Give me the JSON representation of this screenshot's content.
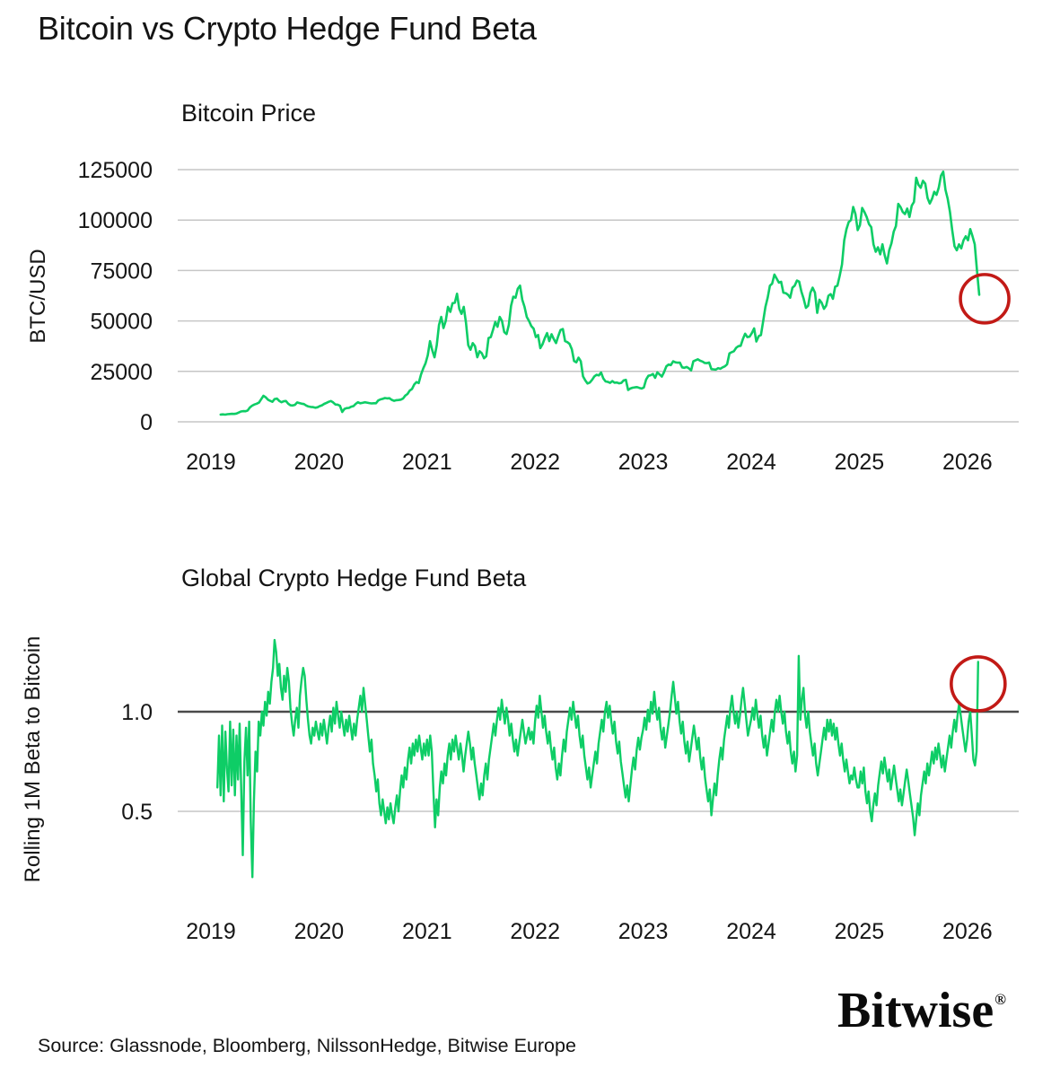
{
  "page": {
    "title": "Bitcoin vs Crypto Hedge Fund Beta",
    "source": "Source: Glassnode, Bloomberg, NilssonHedge, Bitwise Europe",
    "brand": "Bitwise",
    "brand_reg": "®"
  },
  "colors": {
    "series_green": "#0ecd66",
    "grid_gray": "#c6c6c6",
    "reference_dark": "#4a4a4a",
    "annotation_red": "#c21a16",
    "text_dark": "#161616"
  },
  "chart_data": [
    {
      "type": "line",
      "title": "Bitcoin Price",
      "ylabel": "BTC/USD",
      "x_tick_labels": [
        "2019",
        "2020",
        "2021",
        "2022",
        "2023",
        "2024",
        "2025",
        "2026"
      ],
      "y_tick_labels": [
        "125000",
        "100000",
        "75000",
        "50000",
        "25000",
        "0"
      ],
      "y_tick_values": [
        125000,
        100000,
        75000,
        50000,
        25000,
        0
      ],
      "ylim": [
        0,
        125000
      ],
      "grid": true,
      "legend": "none",
      "x_start": 2019.09,
      "x_end": 2026.11,
      "annotation_circle": {
        "t": 2026.16,
        "value": 61000,
        "radius_px": 27
      },
      "values": [
        3600,
        3680,
        3560,
        3800,
        3850,
        3950,
        3900,
        4100,
        4600,
        5100,
        5300,
        5250,
        5600,
        7100,
        8000,
        8600,
        9000,
        9500,
        11200,
        12900,
        12200,
        11000,
        10400,
        9900,
        11300,
        11500,
        10400,
        9700,
        10200,
        10300,
        9000,
        8200,
        8100,
        8400,
        9600,
        9300,
        9000,
        8800,
        8100,
        7600,
        7400,
        7300,
        7000,
        7200,
        7800,
        8200,
        8900,
        9400,
        9900,
        10300,
        9600,
        8600,
        8500,
        7900,
        4900,
        6400,
        6800,
        6900,
        7500,
        7800,
        8900,
        9700,
        9200,
        9400,
        9700,
        9500,
        9300,
        9100,
        9200,
        9200,
        10600,
        11100,
        11400,
        11800,
        11600,
        11700,
        10900,
        10400,
        10700,
        10800,
        11000,
        11500,
        13000,
        13800,
        15500,
        16300,
        18500,
        19700,
        19200,
        23500,
        26500,
        29000,
        33000,
        40000,
        35500,
        32000,
        38000,
        48000,
        52000,
        46500,
        50000,
        57000,
        54500,
        58800,
        59000,
        63500,
        56000,
        53500,
        57000,
        49000,
        38000,
        35700,
        39000,
        37500,
        32000,
        35000,
        34000,
        31500,
        32500,
        41500,
        42000,
        45600,
        49500,
        47100,
        52000,
        50000,
        44500,
        43500,
        48000,
        57500,
        62000,
        61500,
        66000,
        67500,
        60500,
        57000,
        52000,
        50000,
        47500,
        46200,
        42000,
        43000,
        36500,
        38500,
        41500,
        44000,
        40000,
        43400,
        41000,
        39000,
        42500,
        45500,
        46000,
        40000,
        39500,
        38600,
        36000,
        30100,
        29500,
        31800,
        30000,
        22500,
        20500,
        19000,
        19500,
        20800,
        22500,
        23300,
        23000,
        24400,
        21500,
        20000,
        19800,
        19300,
        20200,
        19400,
        19500,
        19100,
        19300,
        20500,
        20800,
        15800,
        16500,
        16900,
        17100,
        17200,
        16800,
        16500,
        17000,
        21000,
        22800,
        23100,
        23700,
        21800,
        24500,
        23500,
        22400,
        24700,
        27500,
        28400,
        28100,
        30000,
        29500,
        29300,
        29300,
        27000,
        26800,
        27200,
        26500,
        25500,
        30000,
        30500,
        31000,
        30300,
        29900,
        29200,
        29100,
        29400,
        26100,
        26000,
        25900,
        26600,
        26300,
        27000,
        27500,
        28500,
        33900,
        34500,
        35000,
        36700,
        37500,
        37700,
        41000,
        43700,
        42000,
        42200,
        44000,
        46300,
        39800,
        42500,
        43000,
        49900,
        57000,
        61500,
        67500,
        68500,
        73000,
        71000,
        69000,
        69400,
        64000,
        63800,
        63000,
        61500,
        66500,
        67500,
        70000,
        69500,
        64500,
        61000,
        56500,
        57500,
        64000,
        66500,
        64000,
        54000,
        60500,
        59000,
        56000,
        57600,
        62500,
        63300,
        61000,
        67000,
        67500,
        72300,
        78000,
        90000,
        95500,
        99000,
        100000,
        106500,
        103000,
        95000,
        97500,
        106000,
        104000,
        101500,
        98000,
        96500,
        88000,
        84300,
        86500,
        83000,
        88000,
        82500,
        78500,
        85000,
        88500,
        94200,
        97000,
        108000,
        106500,
        104000,
        103000,
        105700,
        101500,
        107100,
        109000,
        121000,
        117500,
        116000,
        119500,
        118000,
        111000,
        108200,
        110500,
        114000,
        112500,
        116000,
        122000,
        124000,
        115000,
        110500,
        104000,
        95000,
        87000,
        85000,
        88000,
        86000,
        90000,
        92000,
        90000,
        95500,
        92000,
        88000,
        75000,
        63000
      ]
    },
    {
      "type": "line",
      "title": "Global Crypto Hedge Fund Beta",
      "ylabel": "Rolling 1M Beta to Bitcoin",
      "x_tick_labels": [
        "2019",
        "2020",
        "2021",
        "2022",
        "2023",
        "2024",
        "2025",
        "2026"
      ],
      "y_tick_labels": [
        "1.0",
        "0.5"
      ],
      "y_tick_values": [
        1.0,
        0.5
      ],
      "reference_line": 1.0,
      "ylim": [
        0.13,
        1.45
      ],
      "grid": true,
      "legend": "none",
      "x_start": 2019.06,
      "x_end": 2026.1,
      "annotation_circle": {
        "t": 2026.1,
        "value": 1.14,
        "radius_px": 30
      },
      "values": [
        0.62,
        0.88,
        0.58,
        0.93,
        0.55,
        0.9,
        0.72,
        0.6,
        0.95,
        0.63,
        0.91,
        0.58,
        0.88,
        0.66,
        0.94,
        0.6,
        0.28,
        0.75,
        0.92,
        0.68,
        0.95,
        0.45,
        0.17,
        0.55,
        0.8,
        0.7,
        0.95,
        0.88,
        1.0,
        0.93,
        1.05,
        0.98,
        1.1,
        1.04,
        1.15,
        1.22,
        1.36,
        1.3,
        1.18,
        1.24,
        1.12,
        1.06,
        1.18,
        1.1,
        1.22,
        1.15,
        1.02,
        0.94,
        0.88,
        0.96,
        1.02,
        0.92,
        1.08,
        1.16,
        1.22,
        1.18,
        1.06,
        0.96,
        0.88,
        0.84,
        0.92,
        0.88,
        0.95,
        0.9,
        0.86,
        0.94,
        0.88,
        0.96,
        0.9,
        0.84,
        0.92,
        0.98,
        0.9,
        1.02,
        0.94,
        1.05,
        0.98,
        0.92,
        1.0,
        0.94,
        0.88,
        0.96,
        0.9,
        0.98,
        0.92,
        0.86,
        0.94,
        0.88,
        0.96,
        1.02,
        1.08,
        1.0,
        1.12,
        1.04,
        0.96,
        0.88,
        0.8,
        0.86,
        0.74,
        0.68,
        0.6,
        0.66,
        0.54,
        0.48,
        0.56,
        0.5,
        0.44,
        0.52,
        0.46,
        0.54,
        0.48,
        0.44,
        0.52,
        0.58,
        0.5,
        0.6,
        0.68,
        0.62,
        0.72,
        0.66,
        0.76,
        0.82,
        0.74,
        0.84,
        0.78,
        0.86,
        0.8,
        0.88,
        0.82,
        0.76,
        0.84,
        0.78,
        0.86,
        0.78,
        0.88,
        0.8,
        0.6,
        0.42,
        0.56,
        0.48,
        0.62,
        0.7,
        0.64,
        0.74,
        0.68,
        0.78,
        0.84,
        0.76,
        0.86,
        0.8,
        0.88,
        0.82,
        0.76,
        0.84,
        0.78,
        0.7,
        0.78,
        0.84,
        0.9,
        0.84,
        0.76,
        0.82,
        0.74,
        0.68,
        0.62,
        0.56,
        0.64,
        0.58,
        0.68,
        0.74,
        0.66,
        0.76,
        0.82,
        0.88,
        0.94,
        0.88,
        0.96,
        1.02,
        0.96,
        1.06,
        1.0,
        0.94,
        1.02,
        0.96,
        0.88,
        0.94,
        0.86,
        0.8,
        0.86,
        0.78,
        0.84,
        0.9,
        0.96,
        0.9,
        0.84,
        0.88,
        0.92,
        0.86,
        0.9,
        0.84,
        0.95,
        1.03,
        0.97,
        1.08,
        1.0,
        0.92,
        0.98,
        0.9,
        0.84,
        0.9,
        0.82,
        0.76,
        0.82,
        0.72,
        0.66,
        0.74,
        0.68,
        0.78,
        0.86,
        0.8,
        0.9,
        0.96,
        1.02,
        0.96,
        1.05,
        0.98,
        0.92,
        0.98,
        0.88,
        0.82,
        0.88,
        0.78,
        0.72,
        0.66,
        0.72,
        0.62,
        0.68,
        0.74,
        0.8,
        0.74,
        0.84,
        0.9,
        0.96,
        0.9,
        1.0,
        1.05,
        0.97,
        1.03,
        0.95,
        0.89,
        0.95,
        0.85,
        0.79,
        0.85,
        0.75,
        0.69,
        0.63,
        0.57,
        0.63,
        0.55,
        0.63,
        0.71,
        0.77,
        0.71,
        0.81,
        0.87,
        0.81,
        0.87,
        0.91,
        0.97,
        0.91,
        1.01,
        0.95,
        1.05,
        0.99,
        1.1,
        1.02,
        0.96,
        1.02,
        0.92,
        0.86,
        0.92,
        0.82,
        0.88,
        0.94,
        1.0,
        1.08,
        1.15,
        1.07,
        0.99,
        1.05,
        0.95,
        0.89,
        0.95,
        0.85,
        0.79,
        0.85,
        0.75,
        0.81,
        0.87,
        0.93,
        0.87,
        0.81,
        0.87,
        0.77,
        0.71,
        0.77,
        0.67,
        0.61,
        0.55,
        0.61,
        0.48,
        0.56,
        0.64,
        0.58,
        0.68,
        0.76,
        0.82,
        0.76,
        0.86,
        0.92,
        0.98,
        0.92,
        1.02,
        1.08,
        1.0,
        0.94,
        1.0,
        0.92,
        0.98,
        1.06,
        1.12,
        1.04,
        0.96,
        0.88,
        0.92,
        0.96,
        1.02,
        0.96,
        1.06,
        0.98,
        0.92,
        0.98,
        0.88,
        0.82,
        0.88,
        0.78,
        0.84,
        0.9,
        0.96,
        0.9,
        1.0,
        1.06,
        1.0,
        1.08,
        1.0,
        0.94,
        1.0,
        0.9,
        0.84,
        0.9,
        0.8,
        0.74,
        0.8,
        0.7,
        0.78,
        1.28,
        0.96,
        1.06,
        1.12,
        0.98,
        0.92,
        1.0,
        0.9,
        0.84,
        0.78,
        0.84,
        0.74,
        0.68,
        0.74,
        0.8,
        0.86,
        0.92,
        0.86,
        0.96,
        0.9,
        0.96,
        0.88,
        0.94,
        0.86,
        0.92,
        0.84,
        0.78,
        0.84,
        0.76,
        0.7,
        0.76,
        0.7,
        0.64,
        0.68,
        0.66,
        0.72,
        0.66,
        0.62,
        0.62,
        0.7,
        0.64,
        0.72,
        0.6,
        0.54,
        0.6,
        0.5,
        0.45,
        0.53,
        0.59,
        0.53,
        0.63,
        0.69,
        0.75,
        0.69,
        0.77,
        0.71,
        0.65,
        0.71,
        0.61,
        0.67,
        0.73,
        0.67,
        0.61,
        0.55,
        0.61,
        0.53,
        0.59,
        0.65,
        0.71,
        0.65,
        0.59,
        0.53,
        0.47,
        0.38,
        0.46,
        0.54,
        0.48,
        0.58,
        0.64,
        0.7,
        0.64,
        0.74,
        0.68,
        0.74,
        0.8,
        0.74,
        0.82,
        0.76,
        0.84,
        0.78,
        0.72,
        0.78,
        0.7,
        0.76,
        0.82,
        0.88,
        0.82,
        0.9,
        0.96,
        0.9,
        0.98,
        1.04,
        0.98,
        0.92,
        0.86,
        0.8,
        0.86,
        0.95,
        1.0,
        0.88,
        0.76,
        0.73,
        0.8,
        1.25
      ]
    }
  ]
}
